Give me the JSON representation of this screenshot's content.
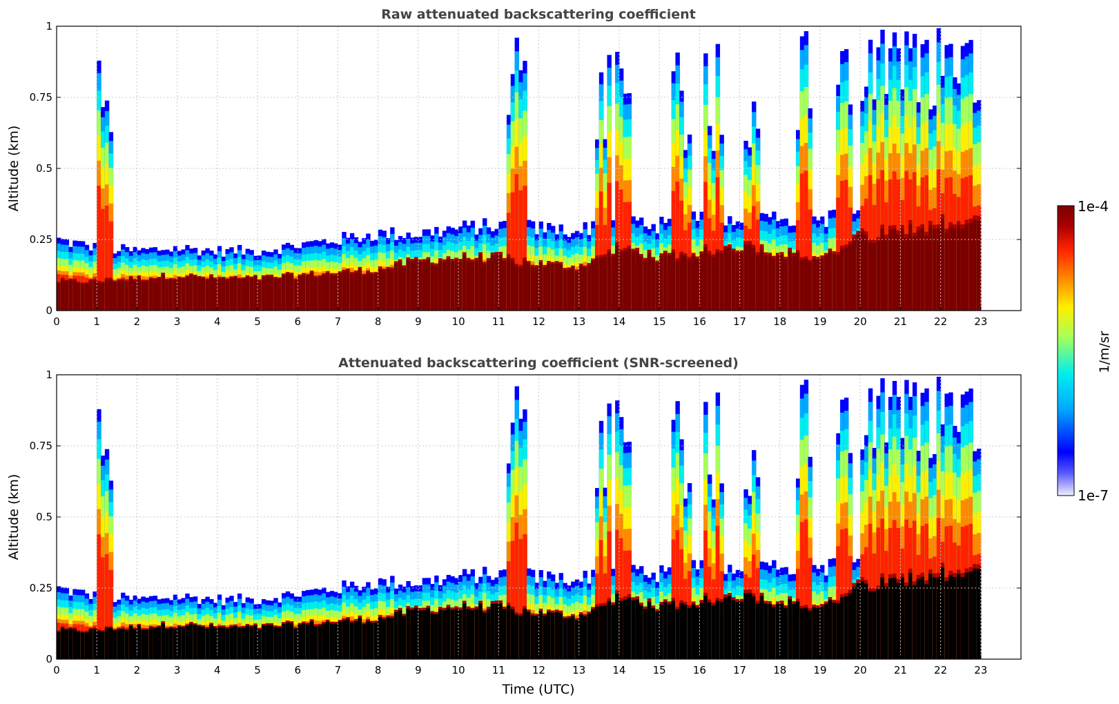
{
  "chart_data": [
    {
      "type": "heatmap",
      "title": "Raw attenuated backscattering coefficient",
      "xlabel": "",
      "ylabel": "Altitude (km)",
      "xlim": [
        0,
        24
      ],
      "ylim": [
        0,
        1
      ],
      "x_ticks": [
        "0",
        "1",
        "2",
        "3",
        "4",
        "5",
        "6",
        "7",
        "8",
        "9",
        "10",
        "11",
        "12",
        "13",
        "14",
        "15",
        "16",
        "17",
        "18",
        "19",
        "20",
        "21",
        "22",
        "23"
      ],
      "y_ticks": [
        "0",
        "0.25",
        "0.5",
        "0.75",
        "1"
      ],
      "grid": true,
      "data_end_hour": 23,
      "screened": false,
      "layers": {
        "aerosol_top_km": [
          [
            0,
            0.25
          ],
          [
            1,
            0.22
          ],
          [
            2,
            0.21
          ],
          [
            3,
            0.22
          ],
          [
            4,
            0.21
          ],
          [
            5,
            0.21
          ],
          [
            6,
            0.23
          ],
          [
            7,
            0.25
          ],
          [
            8,
            0.27
          ],
          [
            9,
            0.27
          ],
          [
            10,
            0.29
          ],
          [
            11,
            0.3
          ],
          [
            12,
            0.29
          ],
          [
            13,
            0.28
          ],
          [
            14,
            0.33
          ],
          [
            15,
            0.3
          ],
          [
            16,
            0.32
          ],
          [
            17,
            0.33
          ],
          [
            18,
            0.33
          ],
          [
            19,
            0.32
          ],
          [
            20,
            0.35
          ],
          [
            21,
            0.4
          ],
          [
            22,
            0.4
          ],
          [
            23,
            0.4
          ]
        ],
        "saturated_top_km": [
          [
            0,
            0.1
          ],
          [
            1,
            0.1
          ],
          [
            2,
            0.11
          ],
          [
            3,
            0.12
          ],
          [
            4,
            0.11
          ],
          [
            5,
            0.11
          ],
          [
            6,
            0.12
          ],
          [
            7,
            0.13
          ],
          [
            8,
            0.14
          ],
          [
            9,
            0.17
          ],
          [
            10,
            0.18
          ],
          [
            11,
            0.18
          ],
          [
            12,
            0.16
          ],
          [
            13,
            0.15
          ],
          [
            14,
            0.22
          ],
          [
            15,
            0.18
          ],
          [
            16,
            0.2
          ],
          [
            17,
            0.22
          ],
          [
            18,
            0.2
          ],
          [
            19,
            0.18
          ],
          [
            20,
            0.25
          ],
          [
            21,
            0.28
          ],
          [
            22,
            0.3
          ],
          [
            23,
            0.3
          ]
        ],
        "cloud_events_hour": [
          1.2,
          11.4,
          13.6,
          14.1,
          15.6,
          16.4,
          17.3,
          18.6,
          19.6,
          20.6,
          21.4,
          22.4
        ]
      }
    },
    {
      "type": "heatmap",
      "title": "Attenuated backscattering coefficient (SNR-screened)",
      "xlabel": "Time (UTC)",
      "ylabel": "Altitude (km)",
      "xlim": [
        0,
        24
      ],
      "ylim": [
        0,
        1
      ],
      "x_ticks": [
        "0",
        "1",
        "2",
        "3",
        "4",
        "5",
        "6",
        "7",
        "8",
        "9",
        "10",
        "11",
        "12",
        "13",
        "14",
        "15",
        "16",
        "17",
        "18",
        "19",
        "20",
        "21",
        "22",
        "23"
      ],
      "y_ticks": [
        "0",
        "0.25",
        "0.5",
        "0.75",
        "1"
      ],
      "grid": true,
      "data_end_hour": 23,
      "screened": true
    }
  ],
  "colorbar": {
    "label": "1/m/sr",
    "max_label": "1e-4",
    "min_label": "1e-7",
    "log_range": [
      -7,
      -4
    ],
    "colors": [
      "#ffffff",
      "#1b1bff",
      "#00aaff",
      "#00eeee",
      "#aaff55",
      "#ffee00",
      "#ff8800",
      "#ff2200",
      "#aa0000",
      "#7a0000"
    ]
  }
}
